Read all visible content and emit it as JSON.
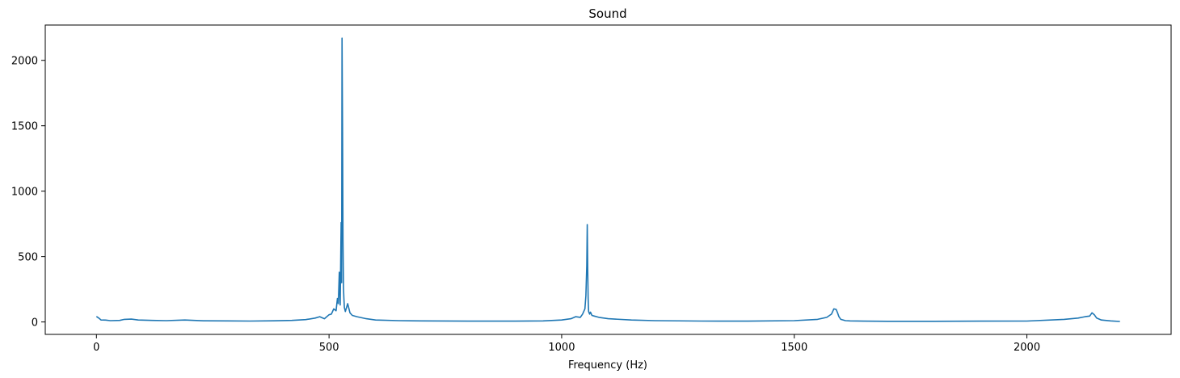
{
  "chart_data": {
    "type": "line",
    "title": "Sound",
    "xlabel": "Frequency (Hz)",
    "ylabel": "",
    "xlim": [
      -110,
      2310
    ],
    "ylim": [
      -95,
      2270
    ],
    "xticks": [
      0,
      500,
      1000,
      1500,
      2000
    ],
    "yticks": [
      0,
      500,
      1000,
      1500,
      2000
    ],
    "xtick_labels": [
      "0",
      "500",
      "1000",
      "1500",
      "2000"
    ],
    "ytick_labels": [
      "0",
      "500",
      "1000",
      "1500",
      "2000"
    ],
    "grid": false,
    "series": [
      {
        "color": "#1f77b4",
        "x": [
          0,
          5,
          10,
          20,
          30,
          50,
          60,
          75,
          90,
          120,
          150,
          190,
          230,
          280,
          330,
          380,
          420,
          450,
          470,
          480,
          490,
          500,
          505,
          510,
          515,
          518,
          520,
          522,
          524,
          526,
          527,
          528,
          529,
          530,
          531,
          532,
          533,
          535,
          540,
          545,
          550,
          560,
          580,
          600,
          650,
          700,
          800,
          900,
          960,
          1000,
          1020,
          1030,
          1040,
          1045,
          1050,
          1052,
          1054,
          1055,
          1056,
          1057,
          1058,
          1060,
          1062,
          1065,
          1070,
          1080,
          1100,
          1150,
          1200,
          1300,
          1400,
          1500,
          1550,
          1570,
          1580,
          1585,
          1590,
          1593,
          1596,
          1600,
          1610,
          1620,
          1650,
          1700,
          1800,
          1900,
          2000,
          2080,
          2110,
          2125,
          2135,
          2140,
          2145,
          2150,
          2160,
          2180,
          2200
        ],
        "values": [
          42,
          30,
          15,
          14,
          10,
          12,
          20,
          22,
          15,
          12,
          10,
          15,
          9,
          8,
          7,
          9,
          12,
          18,
          30,
          40,
          25,
          55,
          60,
          100,
          85,
          180,
          140,
          380,
          130,
          760,
          300,
          2170,
          1500,
          620,
          260,
          180,
          110,
          80,
          140,
          70,
          50,
          40,
          25,
          15,
          10,
          8,
          6,
          6,
          8,
          15,
          25,
          40,
          35,
          60,
          100,
          200,
          430,
          745,
          400,
          180,
          80,
          60,
          75,
          50,
          45,
          35,
          25,
          15,
          10,
          7,
          6,
          10,
          20,
          35,
          60,
          100,
          95,
          70,
          40,
          20,
          10,
          8,
          6,
          5,
          5,
          6,
          7,
          20,
          30,
          40,
          45,
          70,
          55,
          30,
          15,
          8,
          4
        ]
      }
    ]
  }
}
